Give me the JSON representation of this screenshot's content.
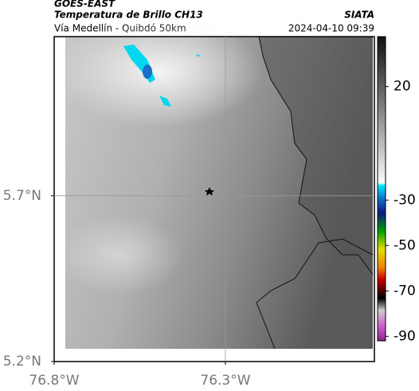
{
  "header": {
    "title": "GOES-EAST",
    "subtitle": "Temperatura de Brillo CH13",
    "source": "SIATA",
    "route": "Vía Medellín - Quibdó 50km",
    "datetime": "2024-04-10 09:39"
  },
  "map": {
    "xlim": [
      -76.8,
      -75.865
    ],
    "ylim": [
      5.2,
      6.18
    ],
    "xticks": [
      {
        "value": -76.8,
        "label": "76.8°W"
      },
      {
        "value": -76.3,
        "label": "76.3°W"
      }
    ],
    "yticks": [
      {
        "value": 5.2,
        "label": "5.2°N"
      },
      {
        "value": 5.7,
        "label": "5.7°N"
      }
    ],
    "grid": true
  },
  "colorbar": {
    "lim": [
      -92,
      42
    ],
    "ticks": [
      20,
      -30,
      -50,
      -70,
      -90
    ]
  }
}
